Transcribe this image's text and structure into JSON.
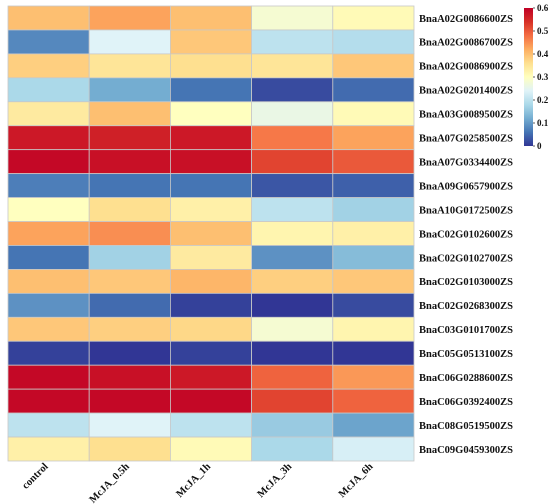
{
  "chart_data": {
    "type": "heatmap",
    "title": "",
    "xlabel": "",
    "ylabel": "",
    "columns": [
      "control",
      "McJA_0.5h",
      "McJA_1h",
      "McJA_3h",
      "McJA_6h"
    ],
    "rows": [
      "BnaA02G0086600ZS",
      "BnaA02G0086700ZS",
      "BnaA02G0086900ZS",
      "BnaA02G0201400ZS",
      "BnaA03G0089500ZS",
      "BnaA07G0258500ZS",
      "BnaA07G0334400ZS",
      "BnaA09G0657900ZS",
      "BnaA10G0172500ZS",
      "BnaC02G0102600ZS",
      "BnaC02G0102700ZS",
      "BnaC02G0103000ZS",
      "BnaC02G0268300ZS",
      "BnaC03G0101700ZS",
      "BnaC05G0513100ZS",
      "BnaC06G0288600ZS",
      "BnaC06G0392400ZS",
      "BnaC08G0519500ZS",
      "BnaC09G0459300ZS"
    ],
    "values": [
      [
        0.4,
        0.43,
        0.4,
        0.28,
        0.31
      ],
      [
        0.08,
        0.24,
        0.39,
        0.2,
        0.19
      ],
      [
        0.38,
        0.35,
        0.36,
        0.35,
        0.39
      ],
      [
        0.18,
        0.12,
        0.06,
        0.02,
        0.05
      ],
      [
        0.34,
        0.4,
        0.3,
        0.26,
        0.31
      ],
      [
        0.57,
        0.56,
        0.57,
        0.47,
        0.43
      ],
      [
        0.59,
        0.58,
        0.58,
        0.52,
        0.5
      ],
      [
        0.07,
        0.06,
        0.06,
        0.03,
        0.04
      ],
      [
        0.3,
        0.36,
        0.33,
        0.2,
        0.17
      ],
      [
        0.43,
        0.45,
        0.4,
        0.32,
        0.33
      ],
      [
        0.06,
        0.17,
        0.34,
        0.09,
        0.14
      ],
      [
        0.4,
        0.39,
        0.41,
        0.38,
        0.39
      ],
      [
        0.09,
        0.05,
        0.01,
        0.0,
        0.02
      ],
      [
        0.39,
        0.38,
        0.37,
        0.28,
        0.32
      ],
      [
        0.01,
        0.0,
        0.01,
        0.0,
        0.0
      ],
      [
        0.59,
        0.58,
        0.57,
        0.49,
        0.44
      ],
      [
        0.59,
        0.59,
        0.59,
        0.52,
        0.49
      ],
      [
        0.2,
        0.24,
        0.2,
        0.16,
        0.11
      ],
      [
        0.33,
        0.36,
        0.31,
        0.18,
        0.23
      ]
    ],
    "colorbar": {
      "ticks": [
        "0.6",
        "0.5",
        "0.4",
        "0.3",
        "0.2",
        "0.1",
        "0"
      ],
      "tick_values": [
        0.6,
        0.5,
        0.4,
        0.3,
        0.2,
        0.1,
        0.0
      ],
      "min": 0,
      "max": 0.6,
      "colors": [
        "#313695",
        "#4575b4",
        "#74add1",
        "#abd9e9",
        "#e0f3f8",
        "#ffffbf",
        "#fee090",
        "#fdae61",
        "#f46d43",
        "#d73027",
        "#c00026"
      ]
    },
    "grid": true,
    "legend": "right (vertical colorbar)"
  }
}
